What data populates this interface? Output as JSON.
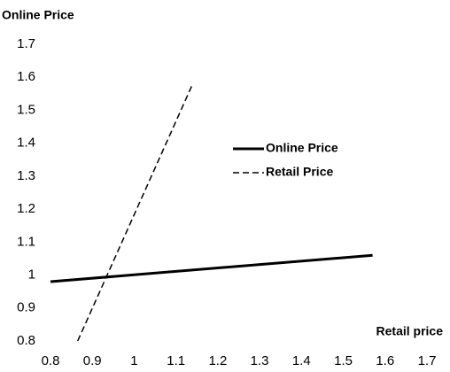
{
  "chart_data": {
    "type": "line",
    "y_label": "Online Price",
    "x_label": "Retail price",
    "xlim": [
      0.8,
      1.7
    ],
    "ylim": [
      0.8,
      1.7
    ],
    "xticks": [
      0.8,
      0.9,
      1,
      1.1,
      1.2,
      1.3,
      1.4,
      1.5,
      1.6,
      1.7
    ],
    "yticks": [
      0.8,
      0.9,
      1,
      1.1,
      1.2,
      1.3,
      1.4,
      1.5,
      1.6,
      1.7
    ],
    "series": [
      {
        "name": "Online Price",
        "color": "#000000",
        "dash": false,
        "x": [
          0.8,
          1.57
        ],
        "values": [
          0.98,
          1.06
        ]
      },
      {
        "name": "Retail Price",
        "color": "#000000",
        "dash": true,
        "x": [
          0.865,
          1.14
        ],
        "values": [
          0.8,
          1.58
        ]
      }
    ]
  }
}
